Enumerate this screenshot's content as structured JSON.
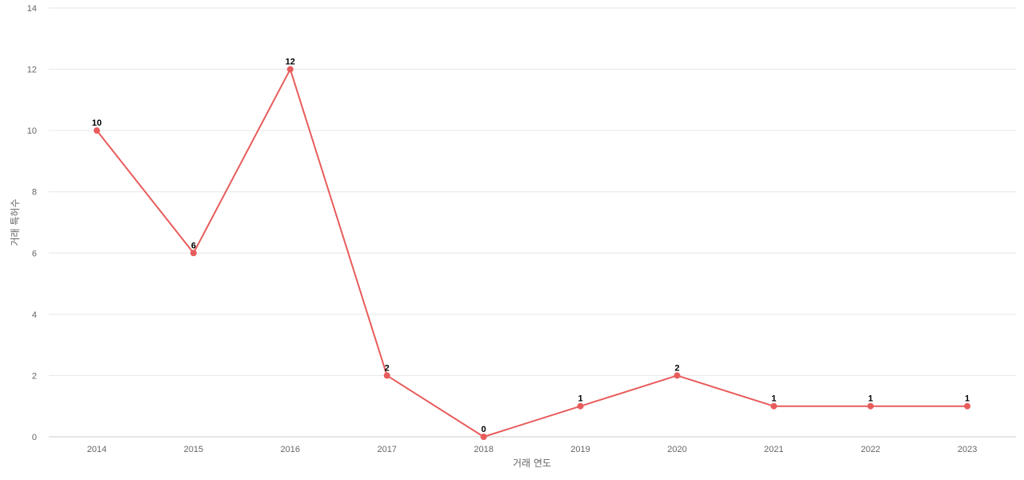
{
  "chart_data": {
    "type": "line",
    "title": "",
    "xlabel": "거래 연도",
    "ylabel": "거래 특허수",
    "x": [
      "2014",
      "2015",
      "2016",
      "2017",
      "2018",
      "2019",
      "2020",
      "2021",
      "2022",
      "2023"
    ],
    "series": [
      {
        "values": [
          10,
          6,
          12,
          2,
          0,
          1,
          2,
          1,
          1,
          1
        ],
        "color": "#e85c5c"
      }
    ],
    "ylim": [
      0,
      14
    ],
    "yticks": [
      0,
      2,
      4,
      6,
      8,
      10,
      12,
      14
    ],
    "grid": true,
    "data_labels": true,
    "legend": "none"
  }
}
